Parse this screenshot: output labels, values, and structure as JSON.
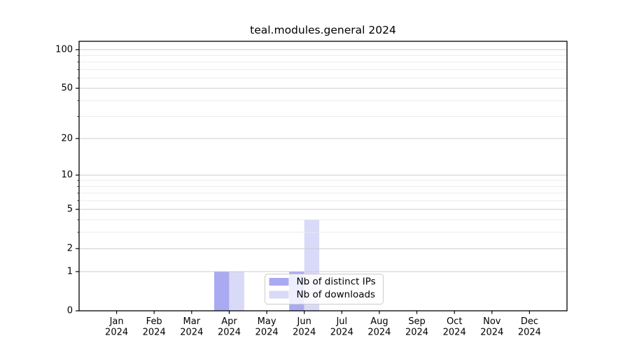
{
  "chart_data": {
    "type": "bar",
    "title": "teal.modules.general 2024",
    "categories": [
      "Jan 2024",
      "Feb 2024",
      "Mar 2024",
      "Apr 2024",
      "May 2024",
      "Jun 2024",
      "Jul 2024",
      "Aug 2024",
      "Sep 2024",
      "Oct 2024",
      "Nov 2024",
      "Dec 2024"
    ],
    "series": [
      {
        "name": "Nb of distinct IPs",
        "color": "#aaaaf2",
        "values": [
          0,
          0,
          0,
          1,
          0,
          1,
          0,
          0,
          0,
          0,
          0,
          0
        ]
      },
      {
        "name": "Nb of downloads",
        "color": "#d9d9f8",
        "values": [
          0,
          0,
          0,
          1,
          0,
          4,
          0,
          0,
          0,
          0,
          0,
          0
        ]
      }
    ],
    "xlabel": "",
    "ylabel": "",
    "yscale": "log1p",
    "ylim": [
      0,
      116
    ],
    "yticks": [
      0,
      1,
      2,
      5,
      10,
      20,
      50,
      100
    ],
    "y_minor_gridlines": [
      3,
      4,
      6,
      7,
      8,
      9,
      30,
      40,
      60,
      70,
      80,
      90
    ],
    "grid": true,
    "legend_position": "lower center",
    "colors": {
      "major_grid": "#cccccc",
      "minor_grid": "#ececec",
      "axis": "#000000",
      "text": "#000000",
      "legend_border": "#cccccc",
      "legend_bg": "rgba(255,255,255,0.8)"
    }
  }
}
